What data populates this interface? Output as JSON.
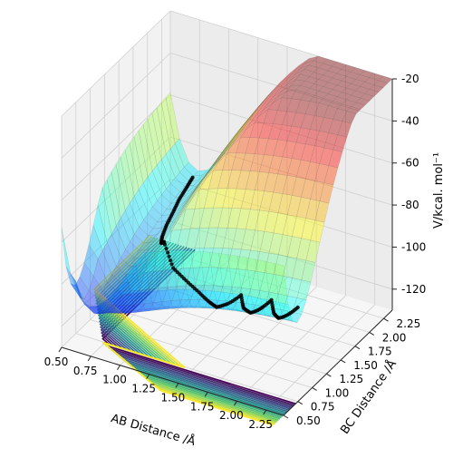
{
  "chart_data": {
    "type": "surface3d",
    "xlabel": "AB Distance /Å",
    "ylabel": "BC Distance /Å",
    "zlabel": "V/kcal. mol⁻¹",
    "xticks": [
      "0.50",
      "0.75",
      "1.00",
      "1.25",
      "1.50",
      "1.75",
      "2.00",
      "2.25"
    ],
    "yticks": [
      "0.50",
      "0.75",
      "1.00",
      "1.25",
      "1.50",
      "1.75",
      "2.00",
      "2.25"
    ],
    "zticks": [
      "-20",
      "-40",
      "-60",
      "-80",
      "-100",
      "-120"
    ],
    "xlim": [
      0.5,
      2.4
    ],
    "ylim": [
      0.5,
      2.4
    ],
    "zlim": [
      -130,
      -20
    ],
    "grid": true,
    "colormap_surface": "jet",
    "colormap_contour": "viridis",
    "trajectory": {
      "marker_color": "#000000",
      "points": [
        [
          0.74,
          2.3
        ],
        [
          0.76,
          2.15
        ],
        [
          0.78,
          1.98
        ],
        [
          0.82,
          1.8
        ],
        [
          0.86,
          1.6
        ],
        [
          0.92,
          1.4
        ],
        [
          1.0,
          1.22
        ],
        [
          1.1,
          1.08
        ],
        [
          1.22,
          0.98
        ],
        [
          1.36,
          0.92
        ],
        [
          1.5,
          0.86
        ],
        [
          1.62,
          0.8
        ],
        [
          1.7,
          0.76
        ],
        [
          1.78,
          0.8
        ],
        [
          1.86,
          0.86
        ],
        [
          1.92,
          0.78
        ],
        [
          2.0,
          0.74
        ],
        [
          2.06,
          0.8
        ],
        [
          2.12,
          0.86
        ],
        [
          2.18,
          0.78
        ],
        [
          2.24,
          0.74
        ],
        [
          2.3,
          0.8
        ],
        [
          2.36,
          0.86
        ]
      ]
    }
  }
}
